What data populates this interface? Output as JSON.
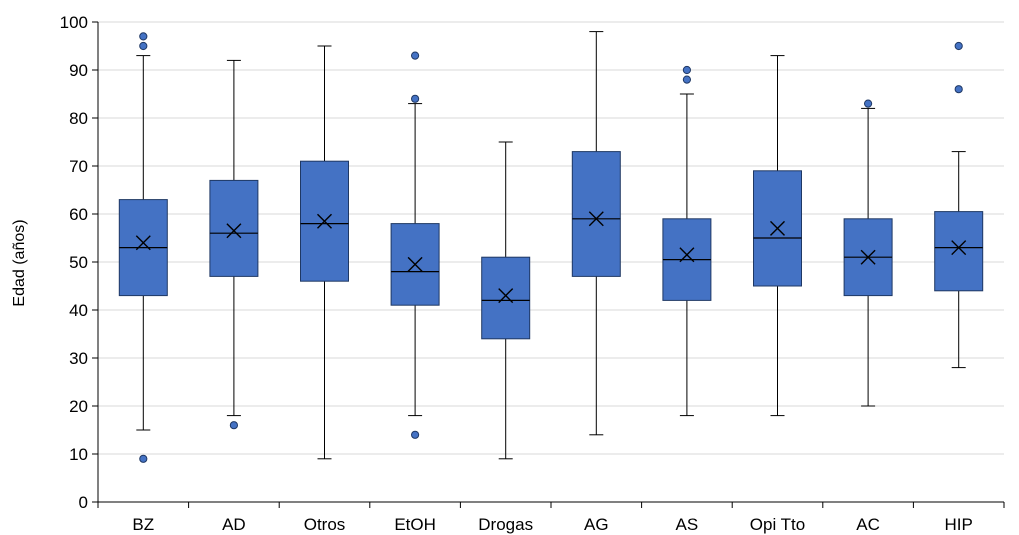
{
  "chart_data": {
    "type": "box",
    "ylabel": "Edad (años)",
    "ylim": [
      0,
      100
    ],
    "yticks": [
      0,
      10,
      20,
      30,
      40,
      50,
      60,
      70,
      80,
      90,
      100
    ],
    "grid": true,
    "categories": [
      "BZ",
      "AD",
      "Otros",
      "EtOH",
      "Drogas",
      "AG",
      "AS",
      "Opi Tto",
      "AC",
      "HIP"
    ],
    "boxes": [
      {
        "category": "BZ",
        "whisker_low": 15,
        "q1": 43,
        "median": 53,
        "q3": 63,
        "whisker_high": 93,
        "mean": 54,
        "outliers": [
          9,
          95,
          97
        ]
      },
      {
        "category": "AD",
        "whisker_low": 18,
        "q1": 47,
        "median": 56,
        "q3": 67,
        "whisker_high": 92,
        "mean": 56.5,
        "outliers": [
          16
        ]
      },
      {
        "category": "Otros",
        "whisker_low": 9,
        "q1": 46,
        "median": 58,
        "q3": 71,
        "whisker_high": 95,
        "mean": 58.5,
        "outliers": []
      },
      {
        "category": "EtOH",
        "whisker_low": 18,
        "q1": 41,
        "median": 48,
        "q3": 58,
        "whisker_high": 83,
        "mean": 49.5,
        "outliers": [
          14,
          84,
          93
        ]
      },
      {
        "category": "Drogas",
        "whisker_low": 9,
        "q1": 34,
        "median": 42,
        "q3": 51,
        "whisker_high": 75,
        "mean": 43,
        "outliers": []
      },
      {
        "category": "AG",
        "whisker_low": 14,
        "q1": 47,
        "median": 59,
        "q3": 73,
        "whisker_high": 98,
        "mean": 59,
        "outliers": []
      },
      {
        "category": "AS",
        "whisker_low": 18,
        "q1": 42,
        "median": 50.5,
        "q3": 59,
        "whisker_high": 85,
        "mean": 51.5,
        "outliers": [
          88,
          90
        ]
      },
      {
        "category": "Opi Tto",
        "whisker_low": 18,
        "q1": 45,
        "median": 55,
        "q3": 69,
        "whisker_high": 93,
        "mean": 57,
        "outliers": []
      },
      {
        "category": "AC",
        "whisker_low": 20,
        "q1": 43,
        "median": 51,
        "q3": 59,
        "whisker_high": 82,
        "mean": 51,
        "outliers": [
          83
        ]
      },
      {
        "category": "HIP",
        "whisker_low": 28,
        "q1": 44,
        "median": 53,
        "q3": 60.5,
        "whisker_high": 73,
        "mean": 53,
        "outliers": [
          86,
          95
        ]
      }
    ],
    "colors": {
      "box_fill": "#4472C4",
      "box_stroke": "#1F3864",
      "grid": "#D9D9D9",
      "axis": "#000000"
    }
  }
}
